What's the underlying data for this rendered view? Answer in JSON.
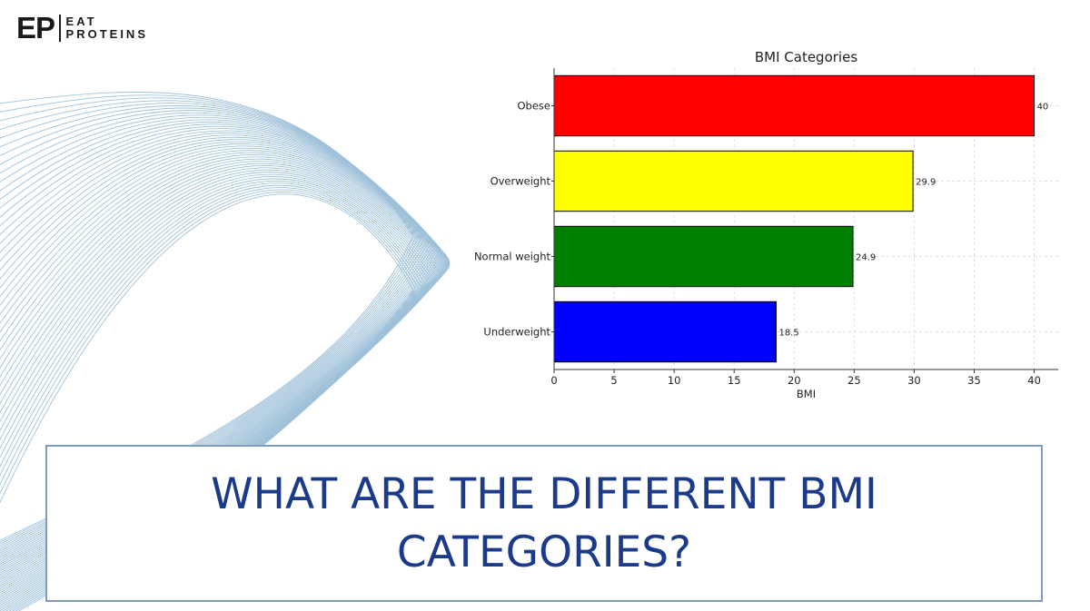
{
  "logo": {
    "mark": "EP",
    "word1": "EAT",
    "word2": "PROTEINS"
  },
  "headline": "WHAT ARE THE DIFFERENT BMI CATEGORIES?",
  "colors": {
    "headline": "#1b3a8a",
    "banner_border": "#7f9cc0",
    "wave": "#8fb7d3"
  },
  "chart_data": {
    "type": "bar",
    "orientation": "horizontal",
    "title": "BMI Categories",
    "xlabel": "BMI",
    "ylabel": "",
    "categories": [
      "Underweight",
      "Normal weight",
      "Overweight",
      "Obese"
    ],
    "values": [
      18.5,
      24.9,
      29.9,
      40
    ],
    "value_labels": [
      "18.5",
      "24.9",
      "29.9",
      "40"
    ],
    "colors": [
      "#0000ff",
      "#008000",
      "#ffff00",
      "#ff0000"
    ],
    "xlim": [
      0,
      42
    ],
    "xticks": [
      0,
      5,
      10,
      15,
      20,
      25,
      30,
      35,
      40
    ],
    "grid": true
  }
}
